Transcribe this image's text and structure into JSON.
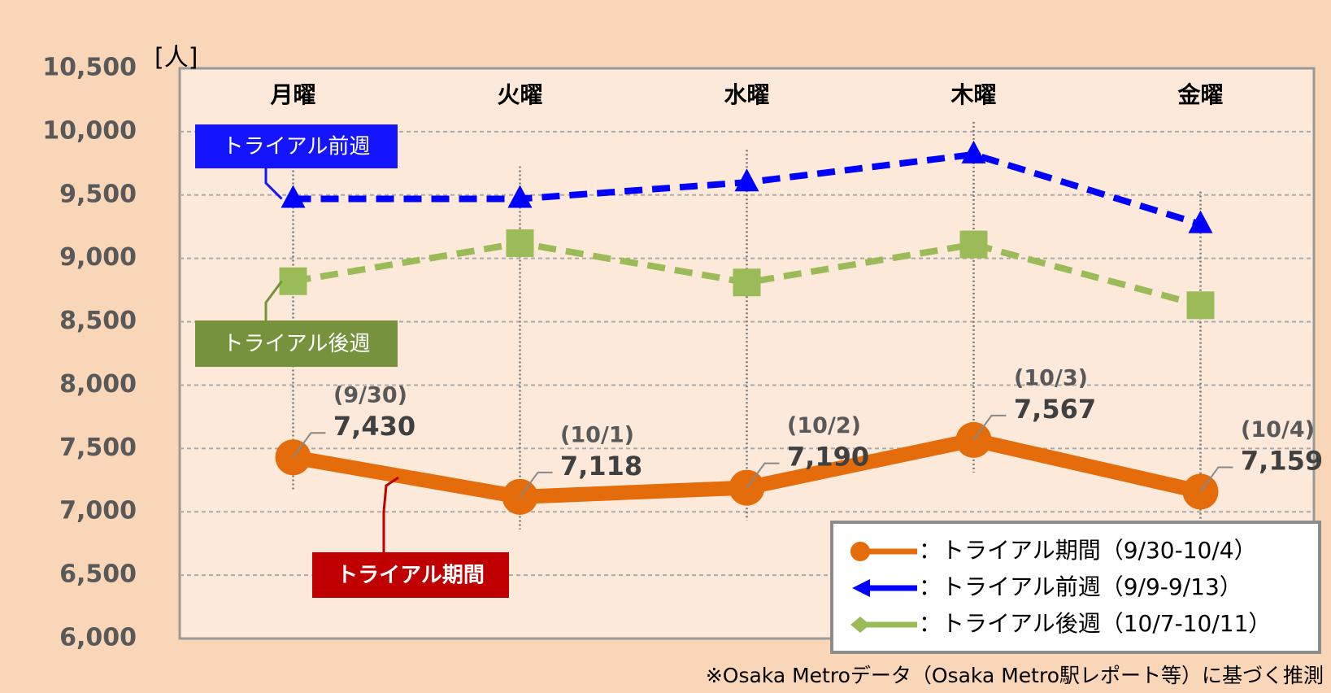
{
  "chart_data": {
    "type": "line",
    "y_unit_label": "[人]",
    "categories": [
      "月曜",
      "火曜",
      "水曜",
      "木曜",
      "金曜"
    ],
    "series": [
      {
        "name": "トライアル期間（9/30-10/4）",
        "color": "#e46c0a",
        "values": [
          7430,
          7118,
          7190,
          7567,
          7159
        ],
        "value_labels": [
          "7,430",
          "7,118",
          "7,190",
          "7,567",
          "7,159"
        ],
        "point_labels": [
          "(9/30)",
          "(10/1)",
          "(10/2)",
          "(10/3)",
          "(10/4)"
        ]
      },
      {
        "name": "トライアル前週（9/9-9/13）",
        "color": "#0000ff",
        "values": [
          9470,
          9470,
          9600,
          9820,
          9270
        ]
      },
      {
        "name": "トライアル後週（10/7-10/11）",
        "color": "#9bbb59",
        "values": [
          8820,
          9120,
          8810,
          9110,
          8630
        ]
      }
    ],
    "callouts": [
      {
        "text": "トライアル期間",
        "color": "#c00000"
      },
      {
        "text": "トライアル前週",
        "color": "#1414ff"
      },
      {
        "text": "トライアル後週",
        "color": "#76923c"
      }
    ],
    "legend_separator": "：",
    "ylim": [
      6000,
      10500
    ],
    "yticks": [
      {
        "value": 6000,
        "label": "6,000"
      },
      {
        "value": 6500,
        "label": "6,500"
      },
      {
        "value": 7000,
        "label": "7,000"
      },
      {
        "value": 7500,
        "label": "7,500"
      },
      {
        "value": 8000,
        "label": "8,000"
      },
      {
        "value": 8500,
        "label": "8,500"
      },
      {
        "value": 9000,
        "label": "9,000"
      },
      {
        "value": 9500,
        "label": "9,500"
      },
      {
        "value": 10000,
        "label": "10,000"
      },
      {
        "value": 10500,
        "label": "10,500"
      }
    ],
    "grid": true,
    "legend": "lower right",
    "footnote": "※Osaka Metroデータ（Osaka Metro駅レポート等）に基づく推測"
  }
}
